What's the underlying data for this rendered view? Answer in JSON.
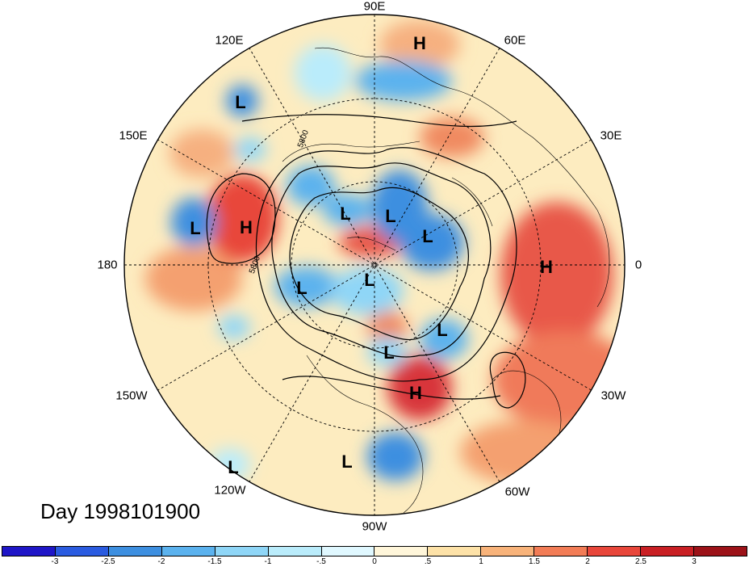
{
  "map": {
    "date_label": "Day 1998101900",
    "longitude_labels": [
      {
        "text": "90E",
        "lon": 90
      },
      {
        "text": "60E",
        "lon": 60
      },
      {
        "text": "30E",
        "lon": 30
      },
      {
        "text": "0",
        "lon": 0
      },
      {
        "text": "30W",
        "lon": -30
      },
      {
        "text": "60W",
        "lon": -60
      },
      {
        "text": "90W",
        "lon": -90
      },
      {
        "text": "120W",
        "lon": -120
      },
      {
        "text": "150W",
        "lon": -150
      },
      {
        "text": "180",
        "lon": 180
      },
      {
        "text": "150E",
        "lon": 150
      },
      {
        "text": "120E",
        "lon": 120
      }
    ],
    "contour_labels": [
      "5800",
      "5800"
    ],
    "centers": [
      {
        "type": "H",
        "label": "H"
      },
      {
        "type": "L",
        "label": "L"
      },
      {
        "type": "H",
        "label": "H"
      },
      {
        "type": "L",
        "label": "L"
      },
      {
        "type": "L",
        "label": "L"
      },
      {
        "type": "L",
        "label": "L"
      },
      {
        "type": "L",
        "label": "L"
      },
      {
        "type": "H",
        "label": "H"
      },
      {
        "type": "L",
        "label": "L"
      },
      {
        "type": "L",
        "label": "L"
      },
      {
        "type": "L",
        "label": "L"
      },
      {
        "type": "L",
        "label": "L"
      },
      {
        "type": "H",
        "label": "H"
      },
      {
        "type": "L",
        "label": "L"
      },
      {
        "type": "L",
        "label": "L"
      }
    ],
    "colors": {
      "high_anomaly": "#e8463a",
      "low_anomaly": "#3d8fe0",
      "neutral_warm": "#fde9b8",
      "neutral_cool": "#d6f4ff"
    }
  },
  "colorbar": {
    "ticks": [
      "-3",
      "-2.5",
      "-2",
      "-1.5",
      "-1",
      "-.5",
      "0",
      ".5",
      "1",
      "1.5",
      "2",
      "2.5",
      "3"
    ],
    "colors": [
      "#1f16c8",
      "#2a5be0",
      "#3d8fe0",
      "#5bb2ee",
      "#8fd6f7",
      "#baecfb",
      "#e0f8ff",
      "#fff6da",
      "#fde2a8",
      "#f8b37a",
      "#f27c56",
      "#e8463a",
      "#c91f24",
      "#9c1218"
    ]
  }
}
